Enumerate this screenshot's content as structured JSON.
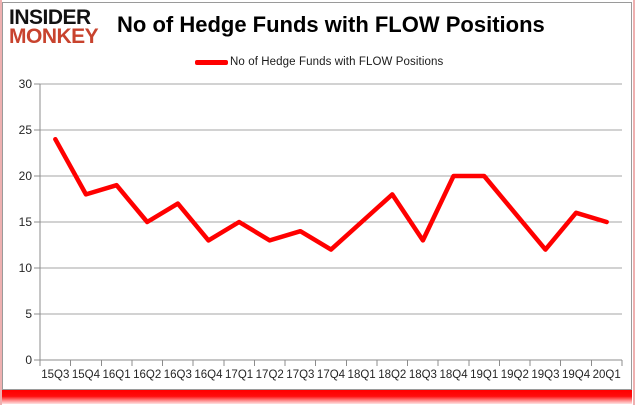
{
  "logo": {
    "line1": "INSIDER",
    "line2": "MONKEY"
  },
  "header": {
    "title": "No of Hedge Funds with FLOW Positions"
  },
  "legend": {
    "label": "No of Hedge Funds with FLOW Positions"
  },
  "colors": {
    "series": "#ff0000",
    "logo_accent": "#c8432e",
    "gridline": "#a6a6a6",
    "axis": "#8c8c8c",
    "tick_label": "#262626",
    "frame": "#9a9a9a",
    "outer_edge": "#eeb0b0"
  },
  "chart_data": {
    "type": "line",
    "title": "No of Hedge Funds with FLOW Positions",
    "categories": [
      "15Q3",
      "15Q4",
      "16Q1",
      "16Q2",
      "16Q3",
      "16Q4",
      "17Q1",
      "17Q2",
      "17Q3",
      "17Q4",
      "18Q1",
      "18Q2",
      "18Q3",
      "18Q4",
      "19Q1",
      "19Q2",
      "19Q3",
      "19Q4",
      "20Q1"
    ],
    "series": [
      {
        "name": "No of Hedge Funds with FLOW Positions",
        "color": "#ff0000",
        "values": [
          24,
          18,
          19,
          15,
          17,
          13,
          15,
          13,
          14,
          12,
          15,
          18,
          13,
          20,
          20,
          16,
          12,
          16,
          15
        ]
      }
    ],
    "xlabel": "",
    "ylabel": "",
    "ylim": [
      0,
      30
    ],
    "yticks": [
      0,
      5,
      10,
      15,
      20,
      25,
      30
    ],
    "grid": true,
    "legend_position": "top-center"
  }
}
